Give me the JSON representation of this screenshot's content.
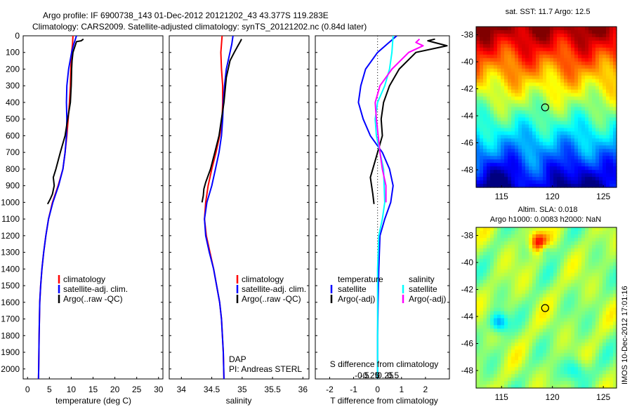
{
  "title": {
    "line1": "Argo profile: IF 6900738_143 01-Dec-2012 20121202_43 43.377S 119.283E",
    "line2": "Climatology: CARS2009. Satellite-adjusted climatology: synTS_20121202.nc (0.84d later)"
  },
  "footer": {
    "dap": "DAP",
    "pi": "PI: Andreas STERL",
    "side_label": "IMOS 10-Dec-2012 17:01:16"
  },
  "colors": {
    "climatology": "#ff0000",
    "satellite": "#0000ff",
    "argo": "#000000",
    "sal_satellite": "#00ffff",
    "sal_argo": "#ff00ff"
  },
  "legend_main": {
    "climatology": "climatology",
    "satellite": "satellite-adj. clim.",
    "argo": "Argo(..raw -QC)"
  },
  "legend_diff": {
    "temperature": "temperature",
    "salinity": "salinity",
    "t_satellite": "satellite",
    "t_argo": "Argo(-adj)",
    "s_satellite": "satellite",
    "s_argo": "Argo(-adj)"
  },
  "map_sst": {
    "title": "sat. SST: 11.7 Argo: 12.5",
    "lon_ticks": [
      "115",
      "120",
      "125"
    ],
    "lat_ticks": [
      "-38",
      "-40",
      "-42",
      "-44",
      "-46",
      "-48"
    ],
    "marker": {
      "lon": 119.283,
      "lat": -43.377
    }
  },
  "map_sla": {
    "title1": "Altim. SLA: 0.018",
    "title2": "Argo h1000: 0.0083 h2000: NaN",
    "lon_ticks": [
      "115",
      "120",
      "125"
    ],
    "lat_ticks": [
      "-38",
      "-40",
      "-42",
      "-44",
      "-46",
      "-48"
    ],
    "marker": {
      "lon": 119.283,
      "lat": -43.377
    }
  },
  "chart_data": [
    {
      "type": "line",
      "xlabel": "temperature (deg C)",
      "ylabel": "",
      "xlim": [
        -1,
        31
      ],
      "ylim": [
        2060,
        0
      ],
      "xticks": [
        0,
        5,
        10,
        15,
        20,
        25,
        30
      ],
      "yticks": [
        0,
        100,
        200,
        300,
        400,
        500,
        600,
        700,
        800,
        900,
        1000,
        1100,
        1200,
        1300,
        1400,
        1500,
        1600,
        1700,
        1800,
        1900,
        2000
      ],
      "series": [
        {
          "name": "climatology",
          "color_key": "climatology",
          "x": [
            10.4,
            10.3,
            10.1,
            9.9,
            9.8,
            9.6,
            9.3,
            9.0,
            8.6,
            8.1,
            7.0,
            5.7,
            4.8,
            4.2,
            3.7,
            3.3,
            3.0,
            2.8,
            2.65,
            2.55,
            2.5
          ],
          "y": [
            0,
            50,
            100,
            200,
            300,
            400,
            500,
            600,
            700,
            800,
            900,
            1000,
            1100,
            1200,
            1300,
            1400,
            1500,
            1600,
            1800,
            2000,
            2060
          ]
        },
        {
          "name": "satellite-adj. clim.",
          "color_key": "satellite",
          "x": [
            11.2,
            10.6,
            10.1,
            9.4,
            9.0,
            8.9,
            9.0,
            8.9,
            8.6,
            8.1,
            7.1,
            5.8,
            4.8,
            4.2,
            3.7,
            3.3,
            3.0,
            2.8,
            2.65,
            2.55,
            2.5
          ],
          "y": [
            0,
            50,
            100,
            200,
            300,
            400,
            500,
            600,
            700,
            800,
            900,
            1000,
            1100,
            1200,
            1300,
            1400,
            1500,
            1600,
            1800,
            2000,
            2060
          ]
        },
        {
          "name": "Argo(..raw -QC)",
          "color_key": "argo",
          "x": [
            12.8,
            12.3,
            11.2,
            10.4,
            10.2,
            10.1,
            10.0,
            9.8,
            9.2,
            8.6,
            7.5,
            6.5,
            5.9,
            6.1,
            5.7,
            5.2,
            4.8,
            4.6
          ],
          "y": [
            20,
            30,
            35,
            100,
            150,
            200,
            300,
            400,
            500,
            600,
            700,
            800,
            850,
            900,
            950,
            980,
            1000,
            1010
          ]
        }
      ]
    },
    {
      "type": "line",
      "xlabel": "salinity",
      "ylabel": "",
      "xlim": [
        33.8,
        36.1
      ],
      "ylim": [
        2060,
        0
      ],
      "xticks": [
        34,
        34.5,
        35,
        35.5,
        36
      ],
      "xticklabels": [
        "34",
        "34.5",
        "35",
        "35.5",
        "36"
      ],
      "series": [
        {
          "name": "climatology",
          "color_key": "climatology",
          "x": [
            34.67,
            34.66,
            34.65,
            34.66,
            34.68,
            34.68,
            34.67,
            34.63,
            34.57,
            34.5,
            34.44,
            34.4,
            34.38,
            34.41,
            34.47,
            34.53,
            34.58,
            34.63,
            34.66,
            34.69,
            34.7
          ],
          "y": [
            0,
            50,
            100,
            200,
            300,
            400,
            500,
            600,
            700,
            800,
            900,
            1000,
            1100,
            1200,
            1300,
            1400,
            1500,
            1600,
            1700,
            1900,
            2060
          ]
        },
        {
          "name": "satellite-adj. clim.",
          "color_key": "satellite",
          "x": [
            34.85,
            34.83,
            34.8,
            34.74,
            34.71,
            34.69,
            34.68,
            34.66,
            34.62,
            34.56,
            34.5,
            34.42,
            34.38,
            34.4,
            34.46,
            34.53,
            34.58,
            34.63,
            34.66,
            34.69,
            34.7
          ],
          "y": [
            0,
            50,
            100,
            200,
            300,
            400,
            500,
            600,
            700,
            800,
            900,
            1000,
            1100,
            1200,
            1300,
            1400,
            1500,
            1600,
            1700,
            1900,
            2060
          ]
        },
        {
          "name": "Argo(..raw -QC)",
          "color_key": "argo",
          "x": [
            34.99,
            34.97,
            34.93,
            34.87,
            34.8,
            34.74,
            34.7,
            34.66,
            34.62,
            34.55,
            34.48,
            34.4,
            34.37,
            34.36,
            34.34
          ],
          "y": [
            20,
            35,
            60,
            100,
            150,
            250,
            400,
            500,
            600,
            700,
            800,
            880,
            920,
            960,
            1000
          ]
        }
      ]
    },
    {
      "type": "line",
      "xlabel": "T difference from climatology",
      "secondary_label": "S difference from climatology",
      "ylabel": "",
      "xlim": [
        -2.6,
        3.0
      ],
      "ylim": [
        2060,
        0
      ],
      "xticks": [
        -2,
        -1,
        0,
        1,
        2
      ],
      "xticklabels": [
        "-2",
        "-1",
        "0",
        "1",
        "2"
      ],
      "secondary_ticks": [
        -0.5,
        -0.25,
        0,
        0.25,
        0.5
      ],
      "secondary_ticklabels": [
        "-0.5",
        "-0.25",
        "0",
        "0.25",
        "0.5"
      ],
      "series": [
        {
          "name": "temperature satellite",
          "color_key": "satellite",
          "x": [
            0.8,
            0.4,
            0.0,
            -0.5,
            -0.7,
            -0.8,
            -0.6,
            -0.3,
            0.2,
            0.5,
            0.65,
            0.55,
            0.3,
            0.1,
            0.05,
            0.02,
            0.0,
            0.0
          ],
          "y": [
            0,
            50,
            100,
            200,
            300,
            400,
            500,
            600,
            700,
            800,
            900,
            1000,
            1100,
            1200,
            1400,
            1600,
            1800,
            2060
          ]
        },
        {
          "name": "temperature Argo(-adj)",
          "color_key": "argo",
          "x": [
            2.4,
            2.1,
            2.9,
            1.6,
            0.9,
            0.5,
            0.25,
            0.15,
            0.2,
            0.0,
            -0.3,
            -0.2,
            -0.15
          ],
          "y": [
            20,
            30,
            60,
            100,
            200,
            300,
            400,
            500,
            600,
            700,
            850,
            950,
            1010
          ]
        },
        {
          "name": "salinity satellite",
          "color_key": "sal_satellite",
          "x": [
            0.65,
            0.6,
            0.5,
            0.3,
            0.0,
            -0.1,
            -0.05,
            0.1,
            0.25,
            0.3,
            0.2,
            0.05,
            0.0,
            0.0,
            0.0
          ],
          "y": [
            0,
            100,
            200,
            300,
            400,
            500,
            600,
            700,
            800,
            1000,
            1100,
            1200,
            1400,
            1700,
            2060
          ]
        },
        {
          "name": "salinity Argo(-adj)",
          "color_key": "sal_argo",
          "x": [
            1.75,
            1.6,
            1.9,
            1.3,
            0.6,
            0.1,
            -0.1,
            -0.05,
            0.1,
            0.2,
            0.35,
            0.35
          ],
          "y": [
            20,
            40,
            60,
            100,
            200,
            300,
            400,
            500,
            700,
            800,
            900,
            1000
          ]
        }
      ]
    },
    {
      "type": "heatmap",
      "title": "sat. SST: 11.7 Argo: 12.5",
      "xlim": [
        112.5,
        126.3
      ],
      "ylim": [
        -49.3,
        -37.4
      ],
      "xticks": [
        115,
        120,
        125
      ],
      "yticks": [
        -38,
        -40,
        -42,
        -44,
        -46,
        -48
      ],
      "colormap": "jet",
      "marker": {
        "lon": 119.283,
        "lat": -43.377
      }
    },
    {
      "type": "heatmap",
      "title": "Altim. SLA: 0.018",
      "subtitle": "Argo h1000: 0.0083 h2000: NaN",
      "xlim": [
        112.5,
        126.3
      ],
      "ylim": [
        -49.3,
        -37.4
      ],
      "xticks": [
        115,
        120,
        125
      ],
      "yticks": [
        -38,
        -40,
        -42,
        -44,
        -46,
        -48
      ],
      "colormap": "jet",
      "marker": {
        "lon": 119.283,
        "lat": -43.377
      }
    }
  ]
}
